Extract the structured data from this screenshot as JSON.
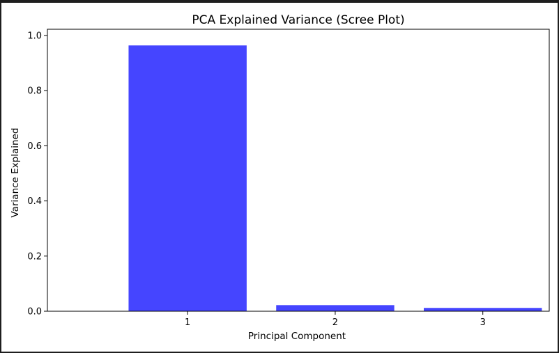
{
  "chart_data": {
    "type": "bar",
    "title": "PCA Explained Variance (Scree Plot)",
    "xlabel": "Principal Component",
    "ylabel": "Variance Explained",
    "categories": [
      "1",
      "2",
      "3"
    ],
    "values": [
      0.964,
      0.022,
      0.012
    ],
    "ylim": [
      0,
      1.0
    ],
    "yticks": [
      "0.0",
      "0.2",
      "0.4",
      "0.6",
      "0.8",
      "1.0"
    ],
    "bar_color": "#4545ff",
    "grid": false,
    "legend": false
  }
}
